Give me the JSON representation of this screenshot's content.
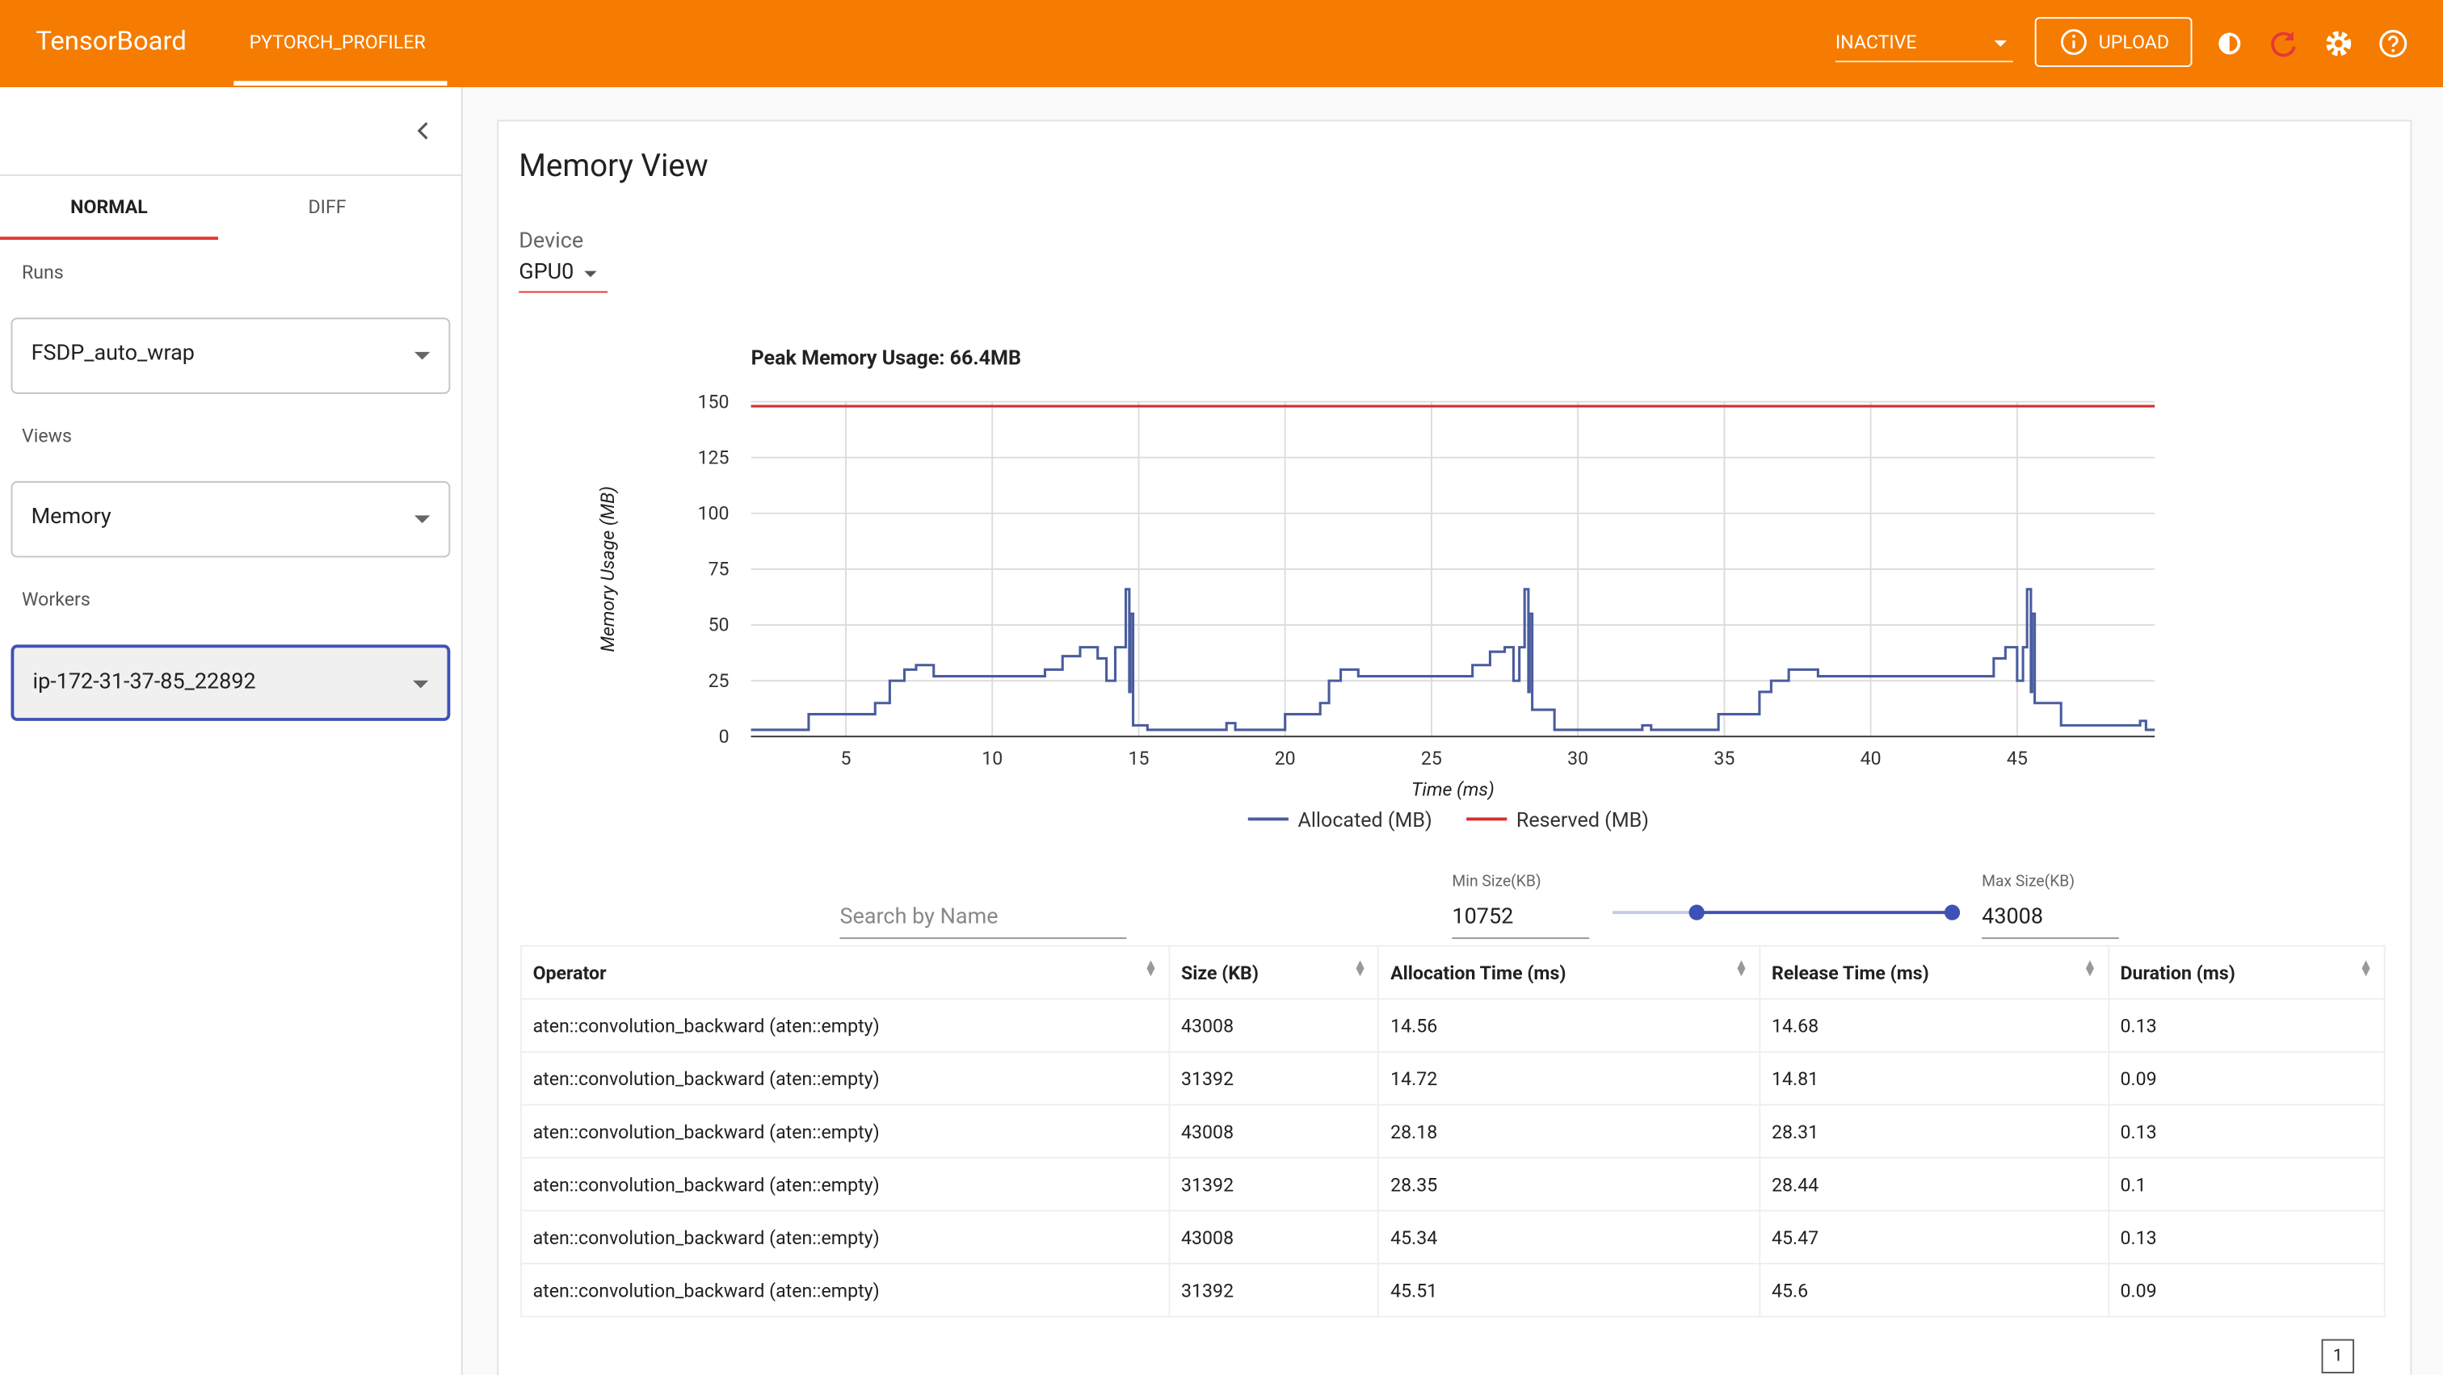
{
  "header": {
    "brand": "TensorBoard",
    "tab": "PYTORCH_PROFILER",
    "status": "INACTIVE",
    "upload": "UPLOAD"
  },
  "sidebar": {
    "tabs": [
      "NORMAL",
      "DIFF"
    ],
    "runs_label": "Runs",
    "run": "FSDP_auto_wrap",
    "views_label": "Views",
    "view": "Memory",
    "workers_label": "Workers",
    "worker": "ip-172-31-37-85_22892"
  },
  "main": {
    "title": "Memory View",
    "device_label": "Device",
    "device": "GPU0",
    "chart": {
      "type": "line",
      "title": "Peak Memory Usage: 66.4MB",
      "x_label": "Time (ms)",
      "y_label": "Memory Usage (MB)",
      "xlim": [
        1.76,
        49.7
      ],
      "ylim": [
        0,
        150
      ],
      "xticks": [
        5,
        10,
        15,
        20,
        25,
        30,
        35,
        40,
        45
      ],
      "yticks": [
        0,
        25,
        50,
        75,
        100,
        125,
        150
      ],
      "grid": true,
      "series": [
        {
          "name": "Allocated (MB)",
          "color": "#4a5c9e",
          "x": [
            1.76,
            3.73,
            3.73,
            6,
            6,
            6.5,
            6.5,
            7,
            7,
            7.4,
            7.4,
            8,
            8,
            11.8,
            11.8,
            12.4,
            12.4,
            13,
            13,
            13.6,
            13.6,
            13.9,
            13.9,
            14.2,
            14.2,
            14.56,
            14.56,
            14.68,
            14.68,
            14.72,
            14.72,
            14.81,
            14.81,
            15.3,
            15.3,
            18,
            18,
            18.3,
            18.3,
            20,
            20,
            21.2,
            21.2,
            21.5,
            21.5,
            21.9,
            21.9,
            22.5,
            22.5,
            26.4,
            26.4,
            27,
            27,
            27.5,
            27.5,
            27.8,
            27.8,
            28,
            28,
            28.18,
            28.18,
            28.31,
            28.31,
            28.35,
            28.35,
            28.44,
            28.44,
            29.2,
            29.2,
            32.2,
            32.2,
            32.5,
            32.5,
            34.8,
            34.8,
            36.2,
            36.2,
            36.6,
            36.6,
            37.2,
            37.2,
            38.2,
            38.2,
            44.2,
            44.2,
            44.6,
            44.6,
            45,
            45,
            45.2,
            45.2,
            45.34,
            45.34,
            45.47,
            45.47,
            45.51,
            45.51,
            45.6,
            45.6,
            46.5,
            46.5,
            49.2,
            49.2,
            49.4,
            49.4,
            49.7
          ],
          "values": [
            3,
            3,
            10,
            10,
            15,
            15,
            25,
            25,
            30,
            30,
            32,
            32,
            27,
            27,
            30,
            30,
            36,
            36,
            40,
            40,
            35,
            35,
            25,
            25,
            40,
            40,
            66,
            66,
            20,
            20,
            55,
            55,
            5,
            5,
            3,
            3,
            6,
            6,
            3,
            3,
            10,
            10,
            15,
            15,
            25,
            25,
            30,
            30,
            27,
            27,
            32,
            32,
            38,
            38,
            40,
            40,
            25,
            25,
            40,
            40,
            66,
            66,
            20,
            20,
            55,
            55,
            12,
            12,
            3,
            3,
            5,
            5,
            3,
            3,
            10,
            10,
            20,
            20,
            25,
            25,
            30,
            30,
            27,
            27,
            35,
            35,
            40,
            40,
            25,
            25,
            40,
            40,
            66,
            66,
            20,
            20,
            55,
            55,
            15,
            15,
            5,
            5,
            7,
            7,
            3,
            3
          ]
        },
        {
          "name": "Reserved (MB)",
          "color": "#d32f2f",
          "x": [
            1.76,
            49.7
          ],
          "values": [
            148,
            148
          ]
        }
      ]
    },
    "filters": {
      "search_placeholder": "Search by Name",
      "min_label": "Min Size(KB)",
      "min": "10752",
      "max_label": "Max Size(KB)",
      "max": "43008"
    },
    "table": {
      "columns": [
        "Operator",
        "Size (KB)",
        "Allocation Time (ms)",
        "Release Time (ms)",
        "Duration (ms)"
      ],
      "rows": [
        [
          "aten::convolution_backward (aten::empty)",
          "43008",
          "14.56",
          "14.68",
          "0.13"
        ],
        [
          "aten::convolution_backward (aten::empty)",
          "31392",
          "14.72",
          "14.81",
          "0.09"
        ],
        [
          "aten::convolution_backward (aten::empty)",
          "43008",
          "28.18",
          "28.31",
          "0.13"
        ],
        [
          "aten::convolution_backward (aten::empty)",
          "31392",
          "28.35",
          "28.44",
          "0.1"
        ],
        [
          "aten::convolution_backward (aten::empty)",
          "43008",
          "45.34",
          "45.47",
          "0.13"
        ],
        [
          "aten::convolution_backward (aten::empty)",
          "31392",
          "45.51",
          "45.6",
          "0.09"
        ]
      ]
    },
    "page": "1"
  }
}
